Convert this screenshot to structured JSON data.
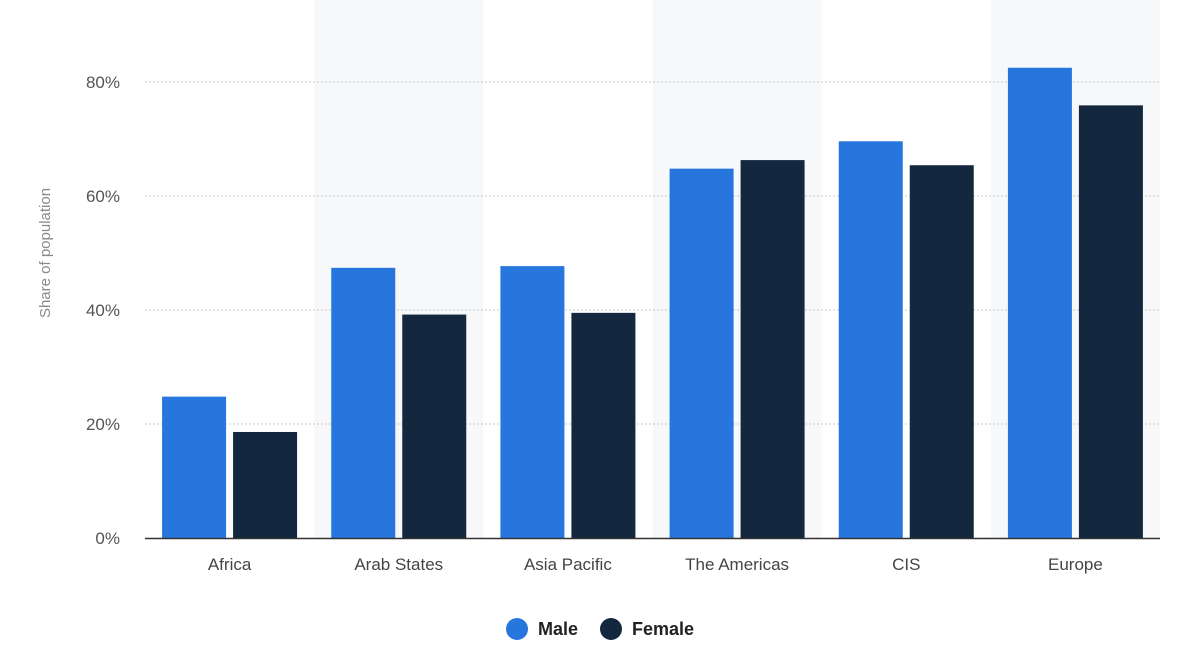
{
  "chart_data": {
    "type": "bar",
    "title": "",
    "xlabel": "",
    "ylabel": "Share of population",
    "categories": [
      "Africa",
      "Arab States",
      "Asia Pacific",
      "The Americas",
      "CIS",
      "Europe"
    ],
    "series": [
      {
        "name": "Male",
        "color": "#2776DE",
        "values": [
          24.8,
          47.4,
          47.7,
          64.8,
          69.6,
          82.5
        ]
      },
      {
        "name": "Female",
        "color": "#13283F",
        "values": [
          18.6,
          39.2,
          39.5,
          66.3,
          65.4,
          75.9
        ]
      }
    ],
    "ylim": [
      0,
      80
    ],
    "yticks": [
      0,
      20,
      40,
      60,
      80
    ],
    "ytick_labels": [
      "0%",
      "20%",
      "40%",
      "60%",
      "80%"
    ],
    "grid": true,
    "alternating_band_color": "#F7F8FA",
    "legend_position": "bottom-center"
  }
}
